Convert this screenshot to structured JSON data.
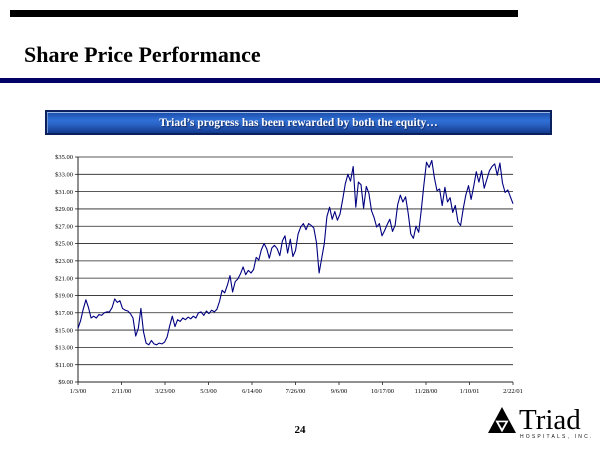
{
  "slide": {
    "title": "Share Price Performance",
    "page_number": "24"
  },
  "banner": {
    "text": "Triad’s progress has been rewarded by both the equity…",
    "background_color": "#2a62c4",
    "border_color": "#0a215e",
    "text_color": "#ffffff"
  },
  "chart_data": {
    "type": "line",
    "title": "",
    "xlabel": "",
    "ylabel": "",
    "y_min": 9,
    "y_max": 35,
    "y_tick_step": 2,
    "y_tick_labels": [
      "$35.00",
      "$33.00",
      "$31.00",
      "$29.00",
      "$27.00",
      "$25.00",
      "$23.00",
      "$21.00",
      "$19.00",
      "$17.00",
      "$15.00",
      "$13.00",
      "$11.00",
      "$9.00"
    ],
    "x_tick_labels": [
      "1/3/00",
      "2/11/00",
      "3/23/00",
      "5/3/00",
      "6/14/00",
      "7/26/00",
      "9/6/00",
      "10/17/00",
      "11/28/00",
      "1/10/01",
      "2/22/01"
    ],
    "grid": "horizontal",
    "legend": "none",
    "line_color": "#000080",
    "axis_color": "#222222",
    "prices": [
      15.2,
      16.1,
      17.4,
      18.5,
      17.6,
      16.4,
      16.6,
      16.4,
      16.8,
      16.7,
      17.0,
      17.1,
      17.1,
      17.6,
      18.6,
      18.2,
      18.4,
      17.5,
      17.3,
      17.2,
      16.9,
      16.4,
      14.3,
      15.2,
      17.5,
      14.8,
      13.5,
      13.3,
      13.8,
      13.4,
      13.3,
      13.5,
      13.4,
      13.6,
      14.2,
      15.5,
      16.6,
      15.4,
      16.2,
      16.0,
      16.4,
      16.2,
      16.5,
      16.3,
      16.6,
      16.4,
      17.0,
      17.1,
      16.7,
      17.2,
      16.9,
      17.3,
      17.1,
      17.4,
      18.3,
      19.6,
      19.3,
      20.2,
      21.3,
      19.4,
      20.6,
      20.9,
      21.5,
      22.3,
      21.4,
      21.9,
      21.6,
      22.0,
      23.4,
      23.1,
      24.3,
      25.0,
      24.4,
      23.3,
      24.5,
      24.8,
      24.4,
      23.6,
      25.3,
      25.9,
      23.9,
      25.5,
      23.5,
      24.2,
      26.1,
      26.9,
      27.3,
      26.6,
      27.3,
      27.1,
      26.8,
      25.1,
      21.6,
      23.3,
      25.0,
      28.1,
      29.2,
      27.8,
      28.7,
      27.7,
      28.4,
      30.1,
      31.9,
      33.0,
      32.2,
      33.9,
      29.2,
      32.1,
      31.8,
      29.1,
      31.6,
      30.8,
      28.8,
      28.0,
      26.9,
      27.3,
      25.9,
      26.5,
      27.2,
      27.8,
      26.4,
      27.1,
      29.5,
      30.6,
      29.8,
      30.4,
      28.5,
      26.1,
      25.6,
      27.0,
      26.3,
      28.9,
      31.8,
      34.4,
      33.8,
      34.6,
      32.6,
      31.1,
      31.3,
      29.4,
      31.5,
      29.8,
      30.3,
      28.6,
      29.4,
      27.5,
      27.1,
      29.0,
      30.6,
      31.7,
      30.1,
      31.6,
      33.3,
      32.1,
      33.4,
      31.4,
      32.4,
      33.4,
      33.9,
      34.2,
      32.9,
      34.3,
      32.0,
      30.9,
      31.2,
      30.4,
      29.6
    ]
  },
  "logo": {
    "name": "Triad",
    "tagline": "HOSPITALS, INC."
  }
}
